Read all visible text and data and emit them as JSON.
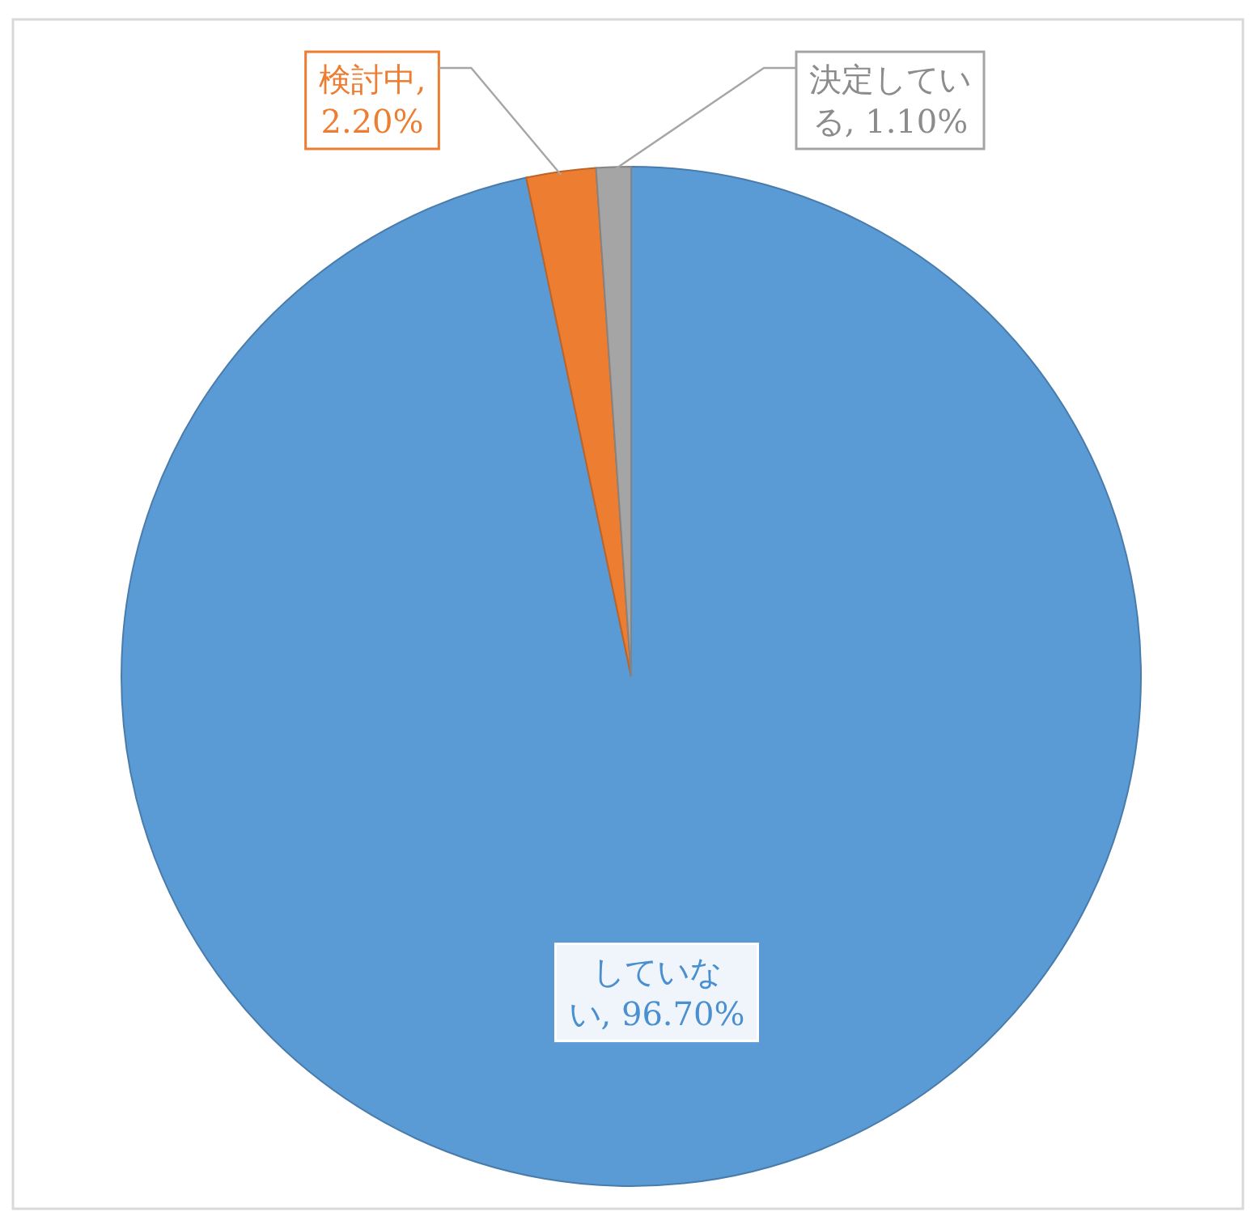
{
  "chart_data": {
    "type": "pie",
    "categories": [
      "していない",
      "検討中",
      "決定している"
    ],
    "values": [
      96.7,
      2.2,
      1.1
    ],
    "colors": [
      "#5b9bd5",
      "#ed7d31",
      "#a5a5a5"
    ],
    "value_labels": [
      ", 96.70%",
      ", 2.20%",
      ", 1.10%"
    ],
    "legend": false
  }
}
